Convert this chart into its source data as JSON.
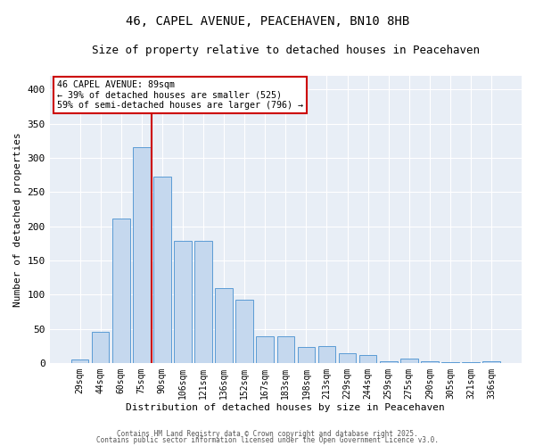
{
  "title": "46, CAPEL AVENUE, PEACEHAVEN, BN10 8HB",
  "subtitle": "Size of property relative to detached houses in Peacehaven",
  "xlabel": "Distribution of detached houses by size in Peacehaven",
  "ylabel": "Number of detached properties",
  "categories": [
    "29sqm",
    "44sqm",
    "60sqm",
    "75sqm",
    "90sqm",
    "106sqm",
    "121sqm",
    "136sqm",
    "152sqm",
    "167sqm",
    "183sqm",
    "198sqm",
    "213sqm",
    "229sqm",
    "244sqm",
    "259sqm",
    "275sqm",
    "290sqm",
    "305sqm",
    "321sqm",
    "336sqm"
  ],
  "values": [
    5,
    45,
    211,
    315,
    272,
    179,
    179,
    110,
    92,
    39,
    39,
    23,
    25,
    14,
    11,
    3,
    6,
    3,
    1,
    1,
    3
  ],
  "bar_color": "#c5d8ee",
  "bar_edge_color": "#5b9bd5",
  "vline_color": "#cc0000",
  "vline_x": 3.5,
  "annotation_line1": "46 CAPEL AVENUE: 89sqm",
  "annotation_line2": "← 39% of detached houses are smaller (525)",
  "annotation_line3": "59% of semi-detached houses are larger (796) →",
  "annotation_box_edge_color": "#cc0000",
  "ylim": [
    0,
    420
  ],
  "yticks": [
    0,
    50,
    100,
    150,
    200,
    250,
    300,
    350,
    400
  ],
  "plot_bg_color": "#e8eef6",
  "fig_bg_color": "#ffffff",
  "grid_color": "#ffffff",
  "footer_line1": "Contains HM Land Registry data © Crown copyright and database right 2025.",
  "footer_line2": "Contains public sector information licensed under the Open Government Licence v3.0."
}
